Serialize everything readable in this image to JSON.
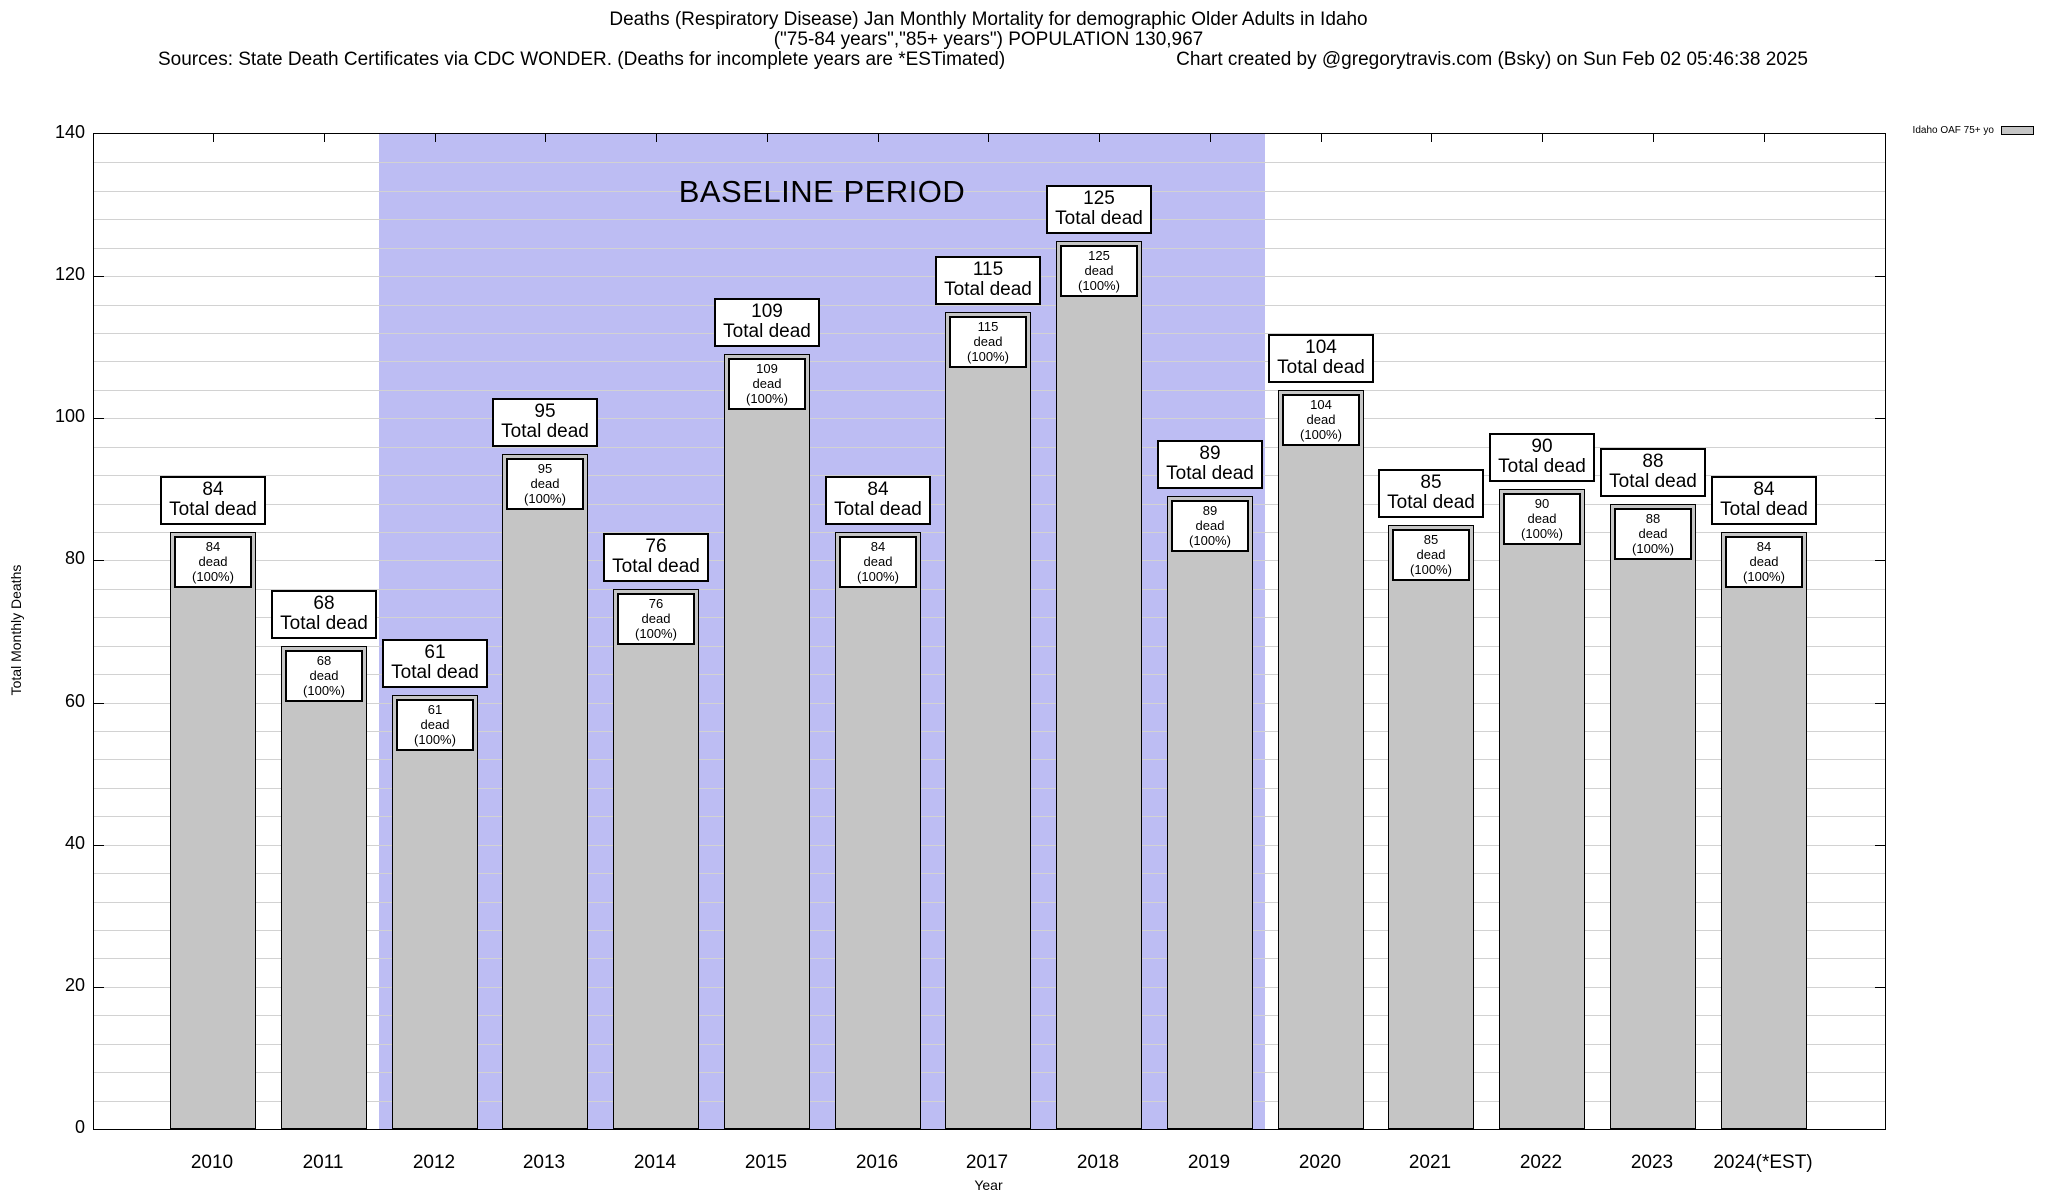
{
  "header": {
    "title_line1": "Deaths (Respiratory Disease) Jan Monthly Mortality for demographic Older Adults in Idaho",
    "title_line2": "(\"75-84 years\",\"85+ years\") POPULATION 130,967",
    "sources": "Sources: State Death Certificates via CDC WONDER. (Deaths for incomplete years are *ESTimated)",
    "credit": "Chart created by @gregorytravis.com (Bsky) on Sun Feb 02 05:46:38 2025"
  },
  "colors": {
    "bar_fill": "#c5c5c5",
    "baseline_band": "#bdbdf3",
    "gridline": "#d2d2d2",
    "axis": "#000000"
  },
  "chart_data": {
    "type": "bar",
    "title": "Deaths (Respiratory Disease) Jan Monthly Mortality for demographic Older Adults in Idaho",
    "subtitle": "(\"75-84 years\",\"85+ years\") POPULATION 130,967",
    "xlabel": "Year",
    "ylabel": "Total Monthly Deaths",
    "ylim": [
      0,
      140
    ],
    "yticks": [
      0,
      20,
      40,
      60,
      80,
      100,
      120,
      140
    ],
    "minor_grid_step": 4,
    "grid": true,
    "legend": {
      "label": "Idaho OAF 75+ yo",
      "position": "top-right"
    },
    "categories": [
      "2010",
      "2011",
      "2012",
      "2013",
      "2014",
      "2015",
      "2016",
      "2017",
      "2018",
      "2019",
      "2020",
      "2021",
      "2022",
      "2023",
      "2024(*EST)"
    ],
    "series": [
      {
        "name": "Idaho OAF 75+ yo",
        "values": [
          84,
          68,
          61,
          95,
          76,
          109,
          84,
          115,
          125,
          89,
          104,
          85,
          90,
          88,
          84
        ]
      }
    ],
    "bar_annotations": {
      "above_box_line2": "Total dead",
      "inner_box_line2": "dead (100%)"
    },
    "baseline_band": {
      "label": "BASELINE PERIOD",
      "from_category": "2012",
      "to_category": "2019"
    }
  }
}
